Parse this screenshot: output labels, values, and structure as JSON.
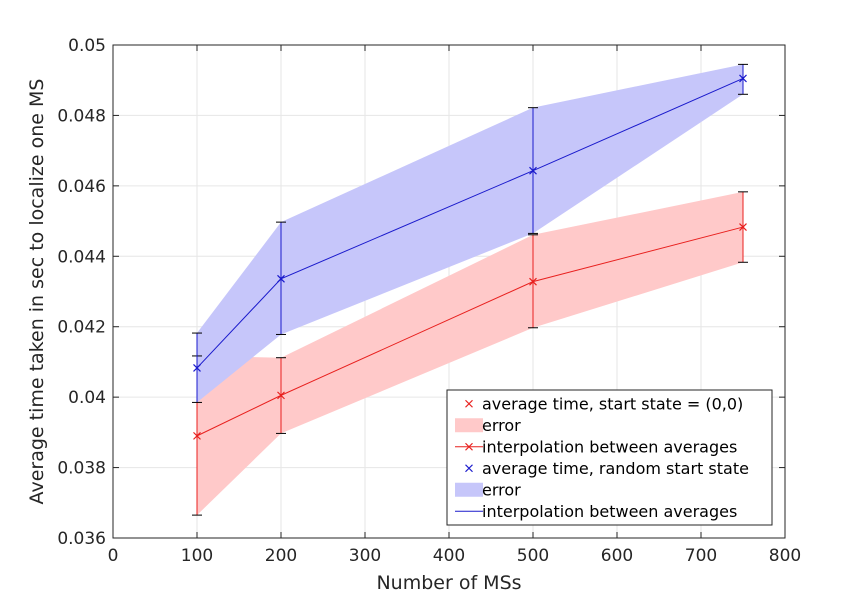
{
  "chart_data": {
    "type": "line",
    "xlabel": "Number of MSs",
    "ylabel": "Average time taken in sec to localize one MS",
    "xlim": [
      0,
      800
    ],
    "ylim": [
      0.036,
      0.05
    ],
    "xticks": [
      0,
      100,
      200,
      300,
      400,
      500,
      600,
      700,
      800
    ],
    "yticks": [
      0.036,
      0.038,
      0.04,
      0.042,
      0.044,
      0.046,
      0.048,
      0.05
    ],
    "xtick_labels": [
      "0",
      "100",
      "200",
      "300",
      "400",
      "500",
      "600",
      "700",
      "800"
    ],
    "ytick_labels": [
      "0.036",
      "0.038",
      "0.04",
      "0.042",
      "0.044",
      "0.046",
      "0.048",
      "0.05"
    ],
    "grid": true,
    "legend_position": "bottom-right",
    "x": [
      100,
      200,
      500,
      750
    ],
    "series": [
      {
        "name": "average time, start state = (0,0)",
        "error_name": "error",
        "interp_name": "interpolation between averages",
        "color": "#e8201e",
        "band_color": "#ffc9c9",
        "values": [
          0.0389,
          0.04005,
          0.04328,
          0.04483
        ],
        "lower": [
          0.03665,
          0.03897,
          0.04197,
          0.04383
        ],
        "upper": [
          0.04117,
          0.04112,
          0.04461,
          0.04583
        ]
      },
      {
        "name": "average time, random start state",
        "error_name": "error",
        "interp_name": "interpolation between averages",
        "color": "#1a1acc",
        "band_color": "#c6c6fa",
        "values": [
          0.04083,
          0.04336,
          0.04643,
          0.04905
        ],
        "lower": [
          0.03985,
          0.04178,
          0.04465,
          0.0486
        ],
        "upper": [
          0.04182,
          0.04497,
          0.04822,
          0.04945
        ]
      }
    ]
  }
}
